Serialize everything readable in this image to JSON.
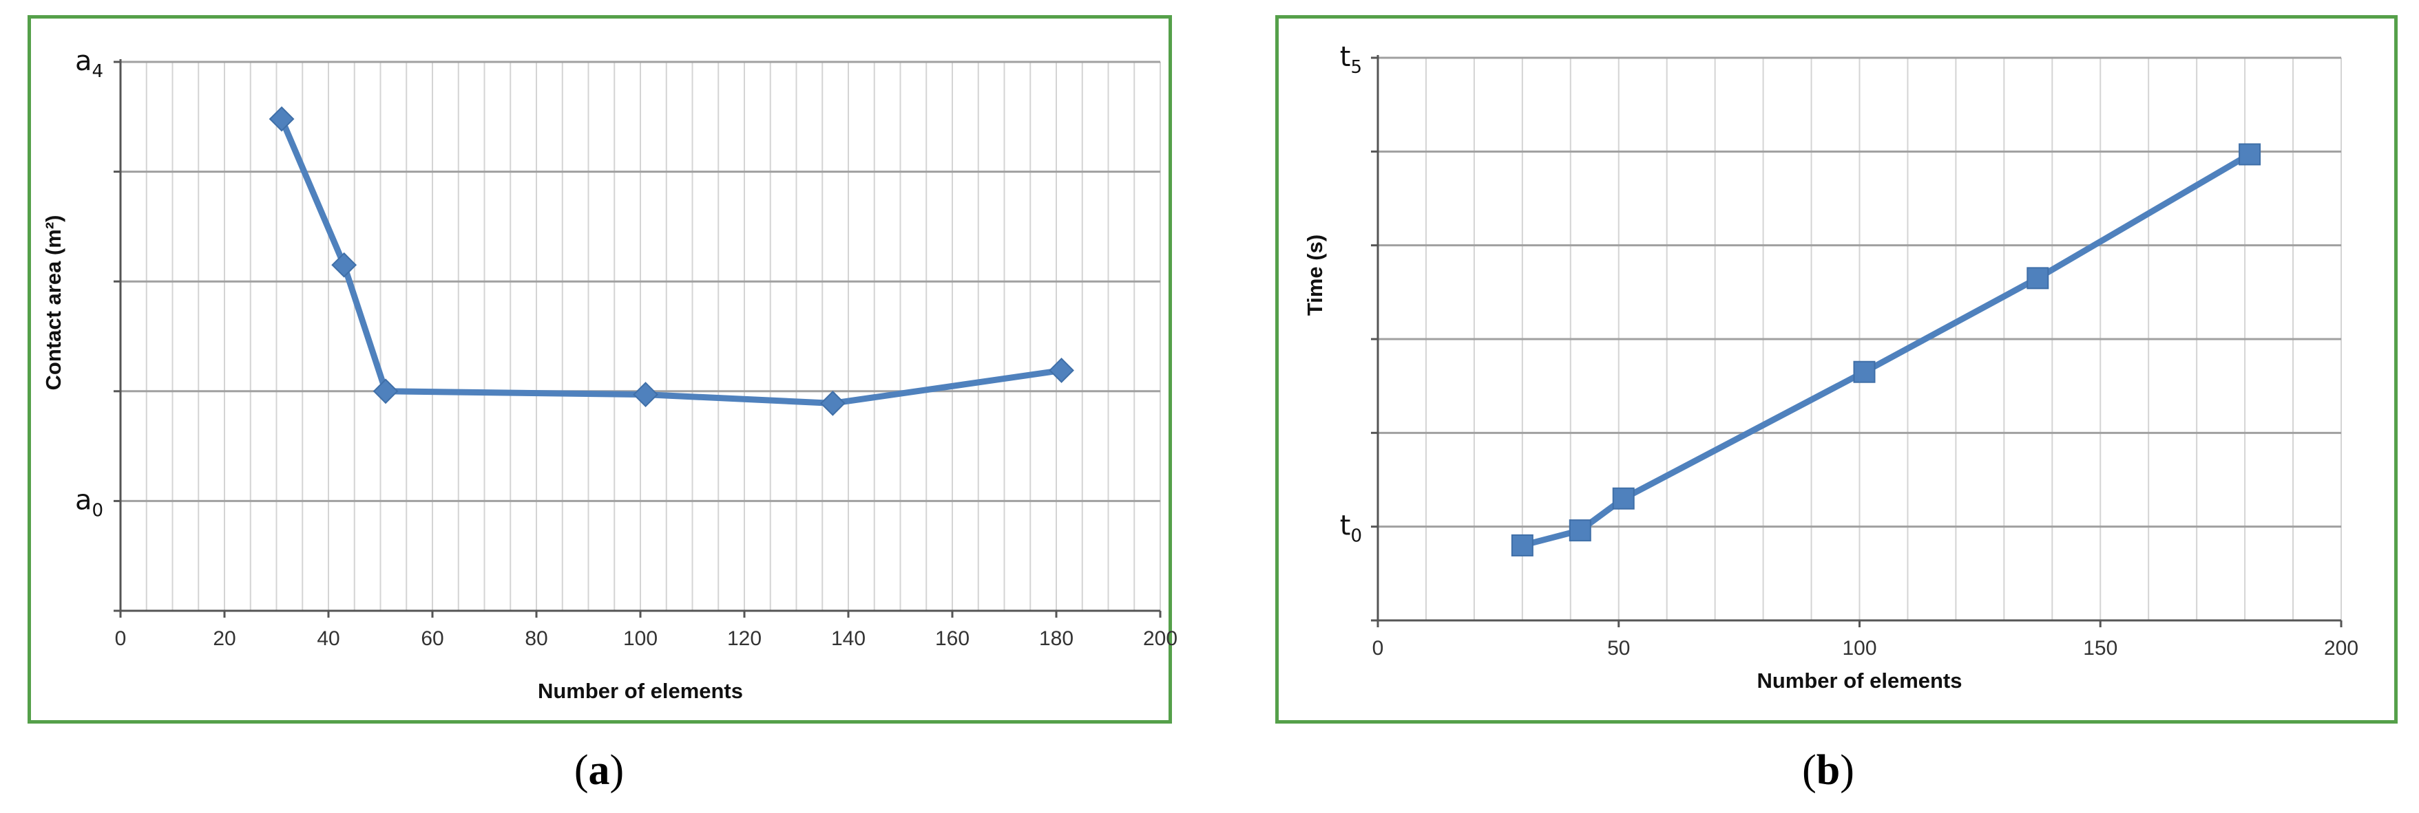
{
  "chart_data": [
    {
      "id": "a",
      "type": "line",
      "caption_letter": "a",
      "xlabel": "Number of elements",
      "ylabel": "Contact area (m²)",
      "x_ticks": [
        "0",
        "20",
        "40",
        "60",
        "80",
        "100",
        "120",
        "140",
        "160",
        "180",
        "200"
      ],
      "xlim": [
        0,
        200
      ],
      "ylim": [
        -1,
        4
      ],
      "y_tick_labels": [
        {
          "value": 4,
          "base": "a",
          "sub": "4"
        },
        {
          "value": 0,
          "base": "a",
          "sub": "0"
        }
      ],
      "marker": "diamond",
      "color": "#4f81bd",
      "grid": true,
      "series": [
        {
          "x": [
            31,
            43,
            51,
            101,
            137,
            181
          ],
          "values": [
            3.48,
            2.15,
            1.0,
            0.97,
            0.89,
            1.19
          ]
        }
      ]
    },
    {
      "id": "b",
      "type": "line",
      "caption_letter": "b",
      "xlabel": "Number of elements",
      "ylabel": "Time (s)",
      "x_ticks": [
        "0",
        "50",
        "100",
        "150",
        "200"
      ],
      "xlim": [
        0,
        200
      ],
      "ylim": [
        -1,
        5
      ],
      "y_tick_labels": [
        {
          "value": 5,
          "base": "t",
          "sub": "5"
        },
        {
          "value": 0,
          "base": "t",
          "sub": "0"
        }
      ],
      "marker": "square",
      "color": "#4f81bd",
      "grid": true,
      "series": [
        {
          "x": [
            30,
            42,
            51,
            101,
            137,
            181
          ],
          "values": [
            -0.2,
            -0.04,
            0.3,
            1.65,
            2.65,
            3.97
          ]
        }
      ]
    }
  ]
}
